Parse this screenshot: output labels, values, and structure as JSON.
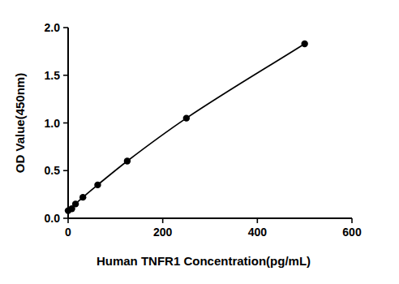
{
  "chart_data": {
    "type": "line",
    "marker": "circle",
    "line_style": "solid",
    "color": "#000000",
    "x_label": "Human TNFR1 Concentration(pg/mL)",
    "y_label": "OD Value(450nm)",
    "x": [
      0,
      7.8,
      15.6,
      31.25,
      62.5,
      125,
      250,
      500
    ],
    "values": [
      0.08,
      0.1,
      0.15,
      0.22,
      0.35,
      0.6,
      1.05,
      1.83
    ],
    "xlim": [
      0,
      600
    ],
    "xticks": [
      0,
      200,
      400,
      600
    ],
    "ylim": [
      0,
      2
    ],
    "yticks": [
      {
        "value": 0,
        "label": "0.0"
      },
      {
        "value": 0.5,
        "label": "0.5"
      },
      {
        "value": 1,
        "label": "1.0"
      },
      {
        "value": 1.5,
        "label": "1.5"
      },
      {
        "value": 2,
        "label": "2.0"
      }
    ],
    "grid": false
  }
}
